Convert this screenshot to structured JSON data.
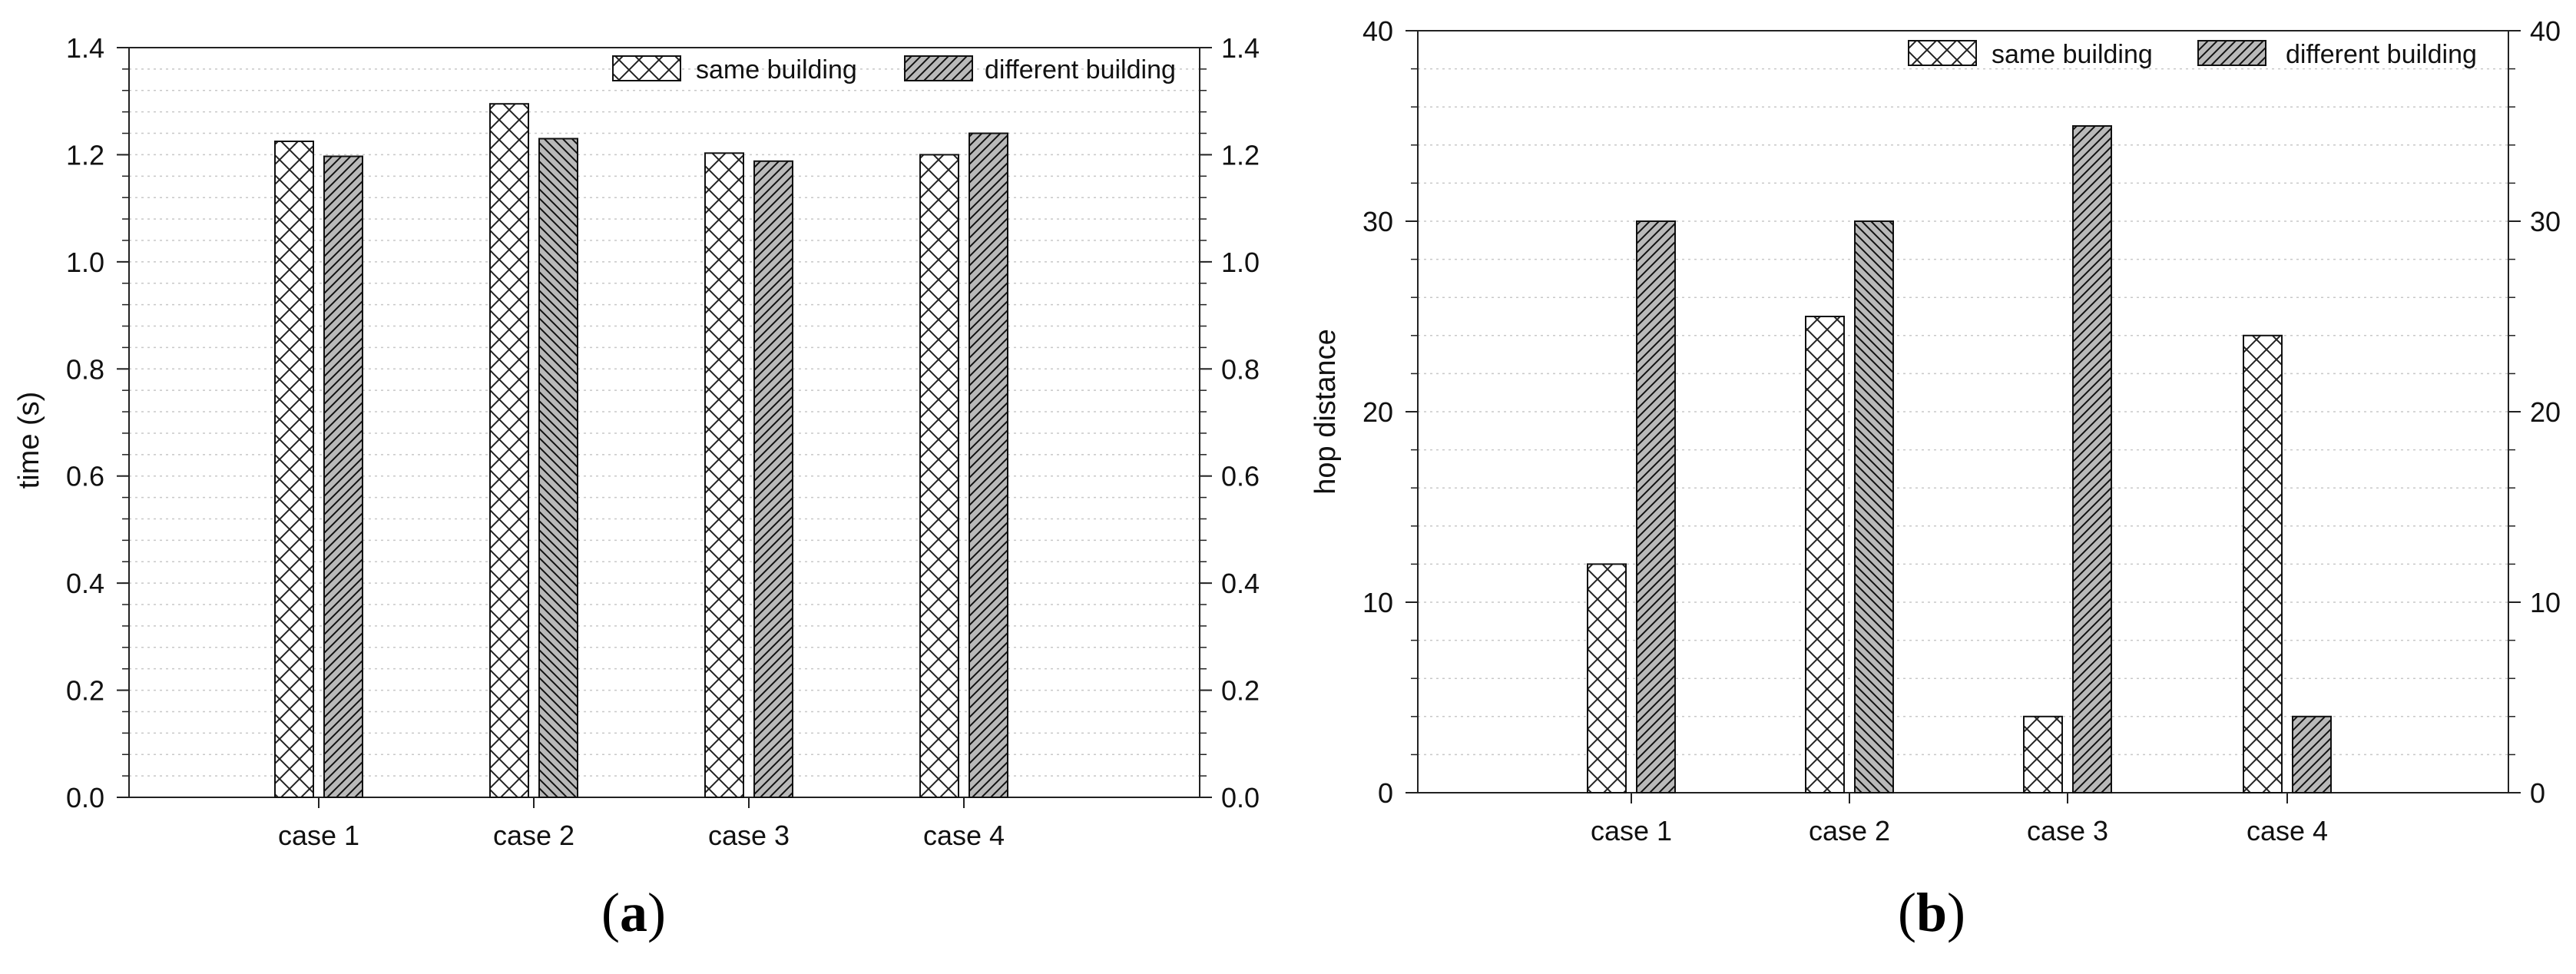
{
  "figure": {
    "panels": [
      {
        "id": "a",
        "label_open": "(",
        "label_letter": "a",
        "label_close": ")"
      },
      {
        "id": "b",
        "label_open": "(",
        "label_letter": "b",
        "label_close": ")"
      }
    ]
  },
  "chart_data": [
    {
      "type": "bar",
      "title": "",
      "xlabel": "",
      "ylabel": "time (s)",
      "categories": [
        "case 1",
        "case 2",
        "case 3",
        "case 4"
      ],
      "ylim": [
        0,
        1.4
      ],
      "yticks": [
        0.0,
        0.2,
        0.4,
        0.6,
        0.8,
        1.0,
        1.2,
        1.4
      ],
      "ytick_labels": [
        "0.0",
        "0.2",
        "0.4",
        "0.6",
        "0.8",
        "1.0",
        "1.2",
        "1.4"
      ],
      "minor_ticks_per_major": 5,
      "grid": "horizontal dotted",
      "right_axis_mirror": true,
      "legend_position": "top-right",
      "series": [
        {
          "name": "same building",
          "pattern": "crosshatch",
          "values": [
            1.225,
            1.295,
            1.203,
            1.2
          ]
        },
        {
          "name": "different building",
          "pattern": "diagonal-gray",
          "values": [
            1.197,
            1.23,
            1.188,
            1.24
          ]
        }
      ],
      "case2_alt_hatch_for_series": 1
    },
    {
      "type": "bar",
      "title": "",
      "xlabel": "",
      "ylabel": "hop distance",
      "categories": [
        "case 1",
        "case 2",
        "case 3",
        "case 4"
      ],
      "ylim": [
        0,
        40
      ],
      "yticks": [
        0,
        10,
        20,
        30,
        40
      ],
      "ytick_labels": [
        "0",
        "10",
        "20",
        "30",
        "40"
      ],
      "minor_ticks_per_major": 5,
      "grid": "horizontal dotted",
      "right_axis_mirror": true,
      "legend_position": "top-right",
      "series": [
        {
          "name": "same building",
          "pattern": "crosshatch",
          "values": [
            12,
            25,
            4,
            24
          ]
        },
        {
          "name": "different building",
          "pattern": "diagonal-gray",
          "values": [
            30,
            30,
            35,
            4
          ]
        }
      ],
      "case2_alt_hatch_for_series": 1
    }
  ]
}
